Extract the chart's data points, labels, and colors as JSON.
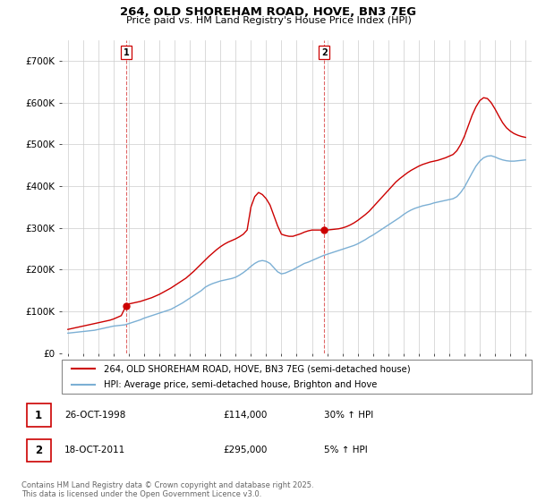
{
  "title_line1": "264, OLD SHOREHAM ROAD, HOVE, BN3 7EG",
  "title_line2": "Price paid vs. HM Land Registry's House Price Index (HPI)",
  "legend_label1": "264, OLD SHOREHAM ROAD, HOVE, BN3 7EG (semi-detached house)",
  "legend_label2": "HPI: Average price, semi-detached house, Brighton and Hove",
  "annotation1_label": "1",
  "annotation1_date": "26-OCT-1998",
  "annotation1_price": "£114,000",
  "annotation1_hpi": "30% ↑ HPI",
  "annotation2_label": "2",
  "annotation2_date": "18-OCT-2011",
  "annotation2_price": "£295,000",
  "annotation2_hpi": "5% ↑ HPI",
  "footer": "Contains HM Land Registry data © Crown copyright and database right 2025.\nThis data is licensed under the Open Government Licence v3.0.",
  "price_color": "#cc0000",
  "hpi_color": "#7bafd4",
  "vline_color": "#cc0000",
  "background_color": "#ffffff",
  "grid_color": "#cccccc",
  "ylim": [
    0,
    750000
  ],
  "yticks": [
    0,
    100000,
    200000,
    300000,
    400000,
    500000,
    600000,
    700000
  ],
  "sale1_year": 1998.82,
  "sale1_price": 114000,
  "sale2_year": 2011.8,
  "sale2_price": 295000,
  "hpi_years": [
    1995.0,
    1995.25,
    1995.5,
    1995.75,
    1996.0,
    1996.25,
    1996.5,
    1996.75,
    1997.0,
    1997.25,
    1997.5,
    1997.75,
    1998.0,
    1998.25,
    1998.5,
    1998.75,
    1999.0,
    1999.25,
    1999.5,
    1999.75,
    2000.0,
    2000.25,
    2000.5,
    2000.75,
    2001.0,
    2001.25,
    2001.5,
    2001.75,
    2002.0,
    2002.25,
    2002.5,
    2002.75,
    2003.0,
    2003.25,
    2003.5,
    2003.75,
    2004.0,
    2004.25,
    2004.5,
    2004.75,
    2005.0,
    2005.25,
    2005.5,
    2005.75,
    2006.0,
    2006.25,
    2006.5,
    2006.75,
    2007.0,
    2007.25,
    2007.5,
    2007.75,
    2008.0,
    2008.25,
    2008.5,
    2008.75,
    2009.0,
    2009.25,
    2009.5,
    2009.75,
    2010.0,
    2010.25,
    2010.5,
    2010.75,
    2011.0,
    2011.25,
    2011.5,
    2011.75,
    2012.0,
    2012.25,
    2012.5,
    2012.75,
    2013.0,
    2013.25,
    2013.5,
    2013.75,
    2014.0,
    2014.25,
    2014.5,
    2014.75,
    2015.0,
    2015.25,
    2015.5,
    2015.75,
    2016.0,
    2016.25,
    2016.5,
    2016.75,
    2017.0,
    2017.25,
    2017.5,
    2017.75,
    2018.0,
    2018.25,
    2018.5,
    2018.75,
    2019.0,
    2019.25,
    2019.5,
    2019.75,
    2020.0,
    2020.25,
    2020.5,
    2020.75,
    2021.0,
    2021.25,
    2021.5,
    2021.75,
    2022.0,
    2022.25,
    2022.5,
    2022.75,
    2023.0,
    2023.25,
    2023.5,
    2023.75,
    2024.0,
    2024.25,
    2024.5,
    2024.75,
    2025.0
  ],
  "hpi_values": [
    48000,
    49000,
    50000,
    51000,
    52000,
    53000,
    54000,
    55000,
    57000,
    59000,
    61000,
    63000,
    65000,
    66000,
    67000,
    68000,
    71000,
    74000,
    77000,
    80000,
    84000,
    87000,
    90000,
    93000,
    96000,
    99000,
    102000,
    105000,
    110000,
    115000,
    120000,
    126000,
    132000,
    138000,
    144000,
    150000,
    158000,
    163000,
    167000,
    170000,
    173000,
    175000,
    177000,
    179000,
    182000,
    187000,
    193000,
    200000,
    208000,
    215000,
    220000,
    222000,
    220000,
    215000,
    205000,
    195000,
    190000,
    192000,
    196000,
    200000,
    205000,
    210000,
    215000,
    218000,
    222000,
    226000,
    230000,
    234000,
    237000,
    240000,
    243000,
    246000,
    249000,
    252000,
    255000,
    258000,
    262000,
    267000,
    272000,
    278000,
    283000,
    289000,
    295000,
    301000,
    307000,
    313000,
    319000,
    325000,
    332000,
    338000,
    343000,
    347000,
    350000,
    353000,
    355000,
    357000,
    360000,
    362000,
    364000,
    366000,
    368000,
    370000,
    375000,
    385000,
    398000,
    415000,
    432000,
    448000,
    460000,
    468000,
    472000,
    473000,
    470000,
    466000,
    463000,
    461000,
    460000,
    460000,
    461000,
    462000,
    463000
  ],
  "price_years": [
    1995.0,
    1995.25,
    1995.5,
    1995.75,
    1996.0,
    1996.25,
    1996.5,
    1996.75,
    1997.0,
    1997.25,
    1997.5,
    1997.75,
    1998.0,
    1998.25,
    1998.5,
    1998.82,
    1999.0,
    1999.25,
    1999.5,
    1999.75,
    2000.0,
    2000.25,
    2000.5,
    2000.75,
    2001.0,
    2001.25,
    2001.5,
    2001.75,
    2002.0,
    2002.25,
    2002.5,
    2002.75,
    2003.0,
    2003.25,
    2003.5,
    2003.75,
    2004.0,
    2004.25,
    2004.5,
    2004.75,
    2005.0,
    2005.25,
    2005.5,
    2005.75,
    2006.0,
    2006.25,
    2006.5,
    2006.75,
    2007.0,
    2007.25,
    2007.5,
    2007.75,
    2008.0,
    2008.25,
    2008.5,
    2008.75,
    2009.0,
    2009.25,
    2009.5,
    2009.75,
    2010.0,
    2010.25,
    2010.5,
    2010.75,
    2011.0,
    2011.25,
    2011.5,
    2011.8,
    2012.0,
    2012.25,
    2012.5,
    2012.75,
    2013.0,
    2013.25,
    2013.5,
    2013.75,
    2014.0,
    2014.25,
    2014.5,
    2014.75,
    2015.0,
    2015.25,
    2015.5,
    2015.75,
    2016.0,
    2016.25,
    2016.5,
    2016.75,
    2017.0,
    2017.25,
    2017.5,
    2017.75,
    2018.0,
    2018.25,
    2018.5,
    2018.75,
    2019.0,
    2019.25,
    2019.5,
    2019.75,
    2020.0,
    2020.25,
    2020.5,
    2020.75,
    2021.0,
    2021.25,
    2021.5,
    2021.75,
    2022.0,
    2022.25,
    2022.5,
    2022.75,
    2023.0,
    2023.25,
    2023.5,
    2023.75,
    2024.0,
    2024.25,
    2024.5,
    2024.75,
    2025.0
  ],
  "price_values": [
    57000,
    59000,
    61000,
    63000,
    65000,
    67000,
    69000,
    71000,
    73000,
    75000,
    77000,
    79000,
    82000,
    86000,
    90000,
    114000,
    118000,
    120000,
    122000,
    124000,
    127000,
    130000,
    133000,
    137000,
    141000,
    146000,
    151000,
    156000,
    162000,
    168000,
    174000,
    180000,
    188000,
    196000,
    205000,
    214000,
    223000,
    232000,
    240000,
    248000,
    255000,
    261000,
    266000,
    270000,
    274000,
    279000,
    285000,
    295000,
    350000,
    375000,
    385000,
    380000,
    370000,
    355000,
    330000,
    305000,
    285000,
    282000,
    280000,
    280000,
    283000,
    286000,
    290000,
    293000,
    295000,
    295000,
    295000,
    295000,
    295000,
    296000,
    297000,
    298000,
    300000,
    303000,
    307000,
    312000,
    318000,
    325000,
    332000,
    340000,
    350000,
    360000,
    370000,
    380000,
    390000,
    400000,
    410000,
    418000,
    425000,
    432000,
    438000,
    443000,
    448000,
    452000,
    455000,
    458000,
    460000,
    462000,
    465000,
    468000,
    472000,
    476000,
    485000,
    500000,
    520000,
    545000,
    570000,
    590000,
    605000,
    612000,
    610000,
    600000,
    585000,
    568000,
    552000,
    540000,
    532000,
    526000,
    522000,
    519000,
    517000
  ]
}
